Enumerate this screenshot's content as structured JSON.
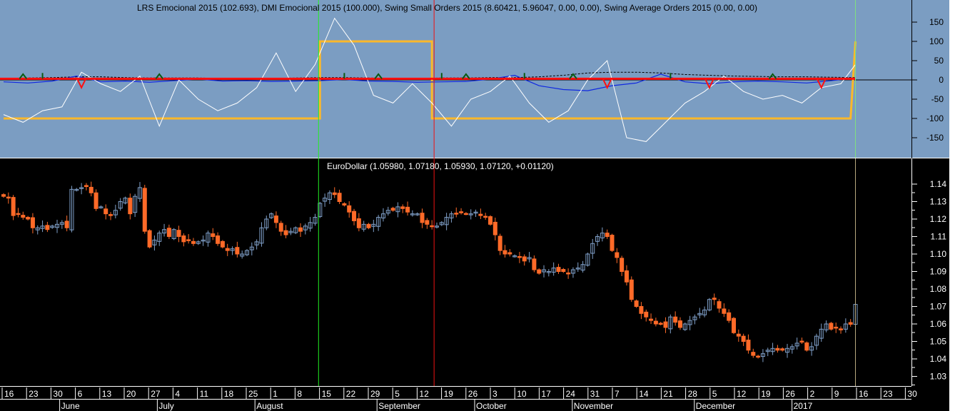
{
  "colors": {
    "indicator_bg": "#7b9dc2",
    "price_bg": "#000000",
    "up": "#7f9fc8",
    "down": "#ff6a28",
    "lrs": "#ffffff",
    "dmi": "#fbb82a",
    "blue": "#1028e0",
    "red": "#ff1010",
    "green_marker": "#0a5a10",
    "cursor_green": "#22ee22",
    "cursor_red": "#ee1111"
  },
  "chart_data": [
    {
      "type": "line",
      "title": "LRS Emocional 2015 (102.693), DMI Emocional 2015 (100.000), Swing Small Orders 2015 (8.60421, 5.96047, 0.00, 0.00), Swing Average Orders 2015 (0.00, 0.00)",
      "ylim": [
        -200,
        200
      ],
      "yticks": [
        "150",
        "100",
        "50",
        "0",
        "-50",
        "-100",
        "-150"
      ],
      "lrs_every_4_bars": [
        -90,
        -110,
        -80,
        -70,
        20,
        -10,
        -30,
        10,
        -120,
        0,
        -50,
        -80,
        -60,
        -20,
        70,
        -30,
        40,
        160,
        90,
        -40,
        -60,
        -10,
        -60,
        -120,
        -50,
        -30,
        10,
        -60,
        -110,
        -80,
        0,
        50,
        -150,
        -160,
        -110,
        -60,
        -30,
        10,
        -30,
        -50,
        -40,
        -60,
        -20,
        -10,
        40,
        102.693
      ],
      "dmi_segments": [
        {
          "from_bar": 0,
          "to_bar": 65,
          "value": -100
        },
        {
          "from_bar": 65,
          "to_bar": 88,
          "value": 100
        },
        {
          "from_bar": 88,
          "to_bar": 174,
          "value": -100
        },
        {
          "from_bar": 175,
          "to_bar": 175,
          "value": 100
        }
      ],
      "swing_small_every_8_bars": [
        -5,
        -8,
        -3,
        10,
        -5,
        -3,
        -6,
        -2,
        2,
        -3,
        -2,
        -4,
        -3,
        -2,
        1,
        -3,
        -4,
        -6,
        -5,
        -4,
        2,
        12,
        -15,
        -25,
        -28,
        -15,
        -8,
        15,
        -5,
        -10,
        -5,
        -3,
        -5,
        -8,
        -2,
        5
      ],
      "swing_avg_every_8_bars": [
        4,
        5,
        6,
        8,
        8,
        6,
        5,
        5,
        5,
        4,
        4,
        4,
        5,
        6,
        6,
        5,
        4,
        4,
        5,
        5,
        6,
        6,
        8,
        12,
        18,
        20,
        20,
        18,
        14,
        12,
        10,
        9,
        8,
        8,
        7,
        6
      ],
      "red_dips_bar": [
        16,
        124,
        145,
        168
      ],
      "green_peaks_bar": [
        4,
        8,
        32,
        70,
        77,
        90,
        95,
        107,
        117,
        137,
        158
      ]
    },
    {
      "type": "candlestick",
      "title": "EuroDollar (1.05980, 1.07180, 1.05930, 1.07120, +0.01120)",
      "ylim": [
        1.025,
        1.15
      ],
      "yticks": [
        "1.14",
        "1.13",
        "1.12",
        "1.11",
        "1.10",
        "1.09",
        "1.08",
        "1.07",
        "1.06",
        "1.05",
        "1.04",
        "1.03"
      ],
      "closes": [
        1.133,
        1.132,
        1.122,
        1.123,
        1.121,
        1.12,
        1.115,
        1.115,
        1.116,
        1.114,
        1.116,
        1.117,
        1.118,
        1.115,
        1.137,
        1.137,
        1.138,
        1.139,
        1.135,
        1.126,
        1.127,
        1.123,
        1.122,
        1.125,
        1.13,
        1.132,
        1.123,
        1.133,
        1.138,
        1.113,
        1.104,
        1.108,
        1.112,
        1.114,
        1.11,
        1.114,
        1.11,
        1.107,
        1.108,
        1.106,
        1.107,
        1.108,
        1.112,
        1.11,
        1.106,
        1.104,
        1.102,
        1.103,
        1.1,
        1.1,
        1.102,
        1.104,
        1.107,
        1.115,
        1.12,
        1.123,
        1.118,
        1.113,
        1.111,
        1.113,
        1.115,
        1.113,
        1.116,
        1.118,
        1.121,
        1.129,
        1.132,
        1.135,
        1.134,
        1.13,
        1.128,
        1.124,
        1.119,
        1.115,
        1.117,
        1.115,
        1.117,
        1.121,
        1.123,
        1.125,
        1.125,
        1.127,
        1.126,
        1.124,
        1.123,
        1.123,
        1.118,
        1.117,
        1.116,
        1.116,
        1.118,
        1.121,
        1.123,
        1.123,
        1.124,
        1.123,
        1.123,
        1.124,
        1.122,
        1.121,
        1.117,
        1.111,
        1.102,
        1.1,
        1.1,
        1.099,
        1.098,
        1.096,
        1.098,
        1.091,
        1.089,
        1.091,
        1.09,
        1.092,
        1.09,
        1.09,
        1.089,
        1.091,
        1.092,
        1.094,
        1.1,
        1.106,
        1.11,
        1.112,
        1.11,
        1.102,
        1.098,
        1.09,
        1.084,
        1.074,
        1.07,
        1.066,
        1.064,
        1.062,
        1.06,
        1.06,
        1.058,
        1.064,
        1.061,
        1.058,
        1.06,
        1.062,
        1.064,
        1.066,
        1.068,
        1.074,
        1.074,
        1.069,
        1.066,
        1.062,
        1.055,
        1.053,
        1.05,
        1.045,
        1.042,
        1.041,
        1.043,
        1.045,
        1.046,
        1.045,
        1.045,
        1.046,
        1.047,
        1.049,
        1.05,
        1.045,
        1.047,
        1.053,
        1.057,
        1.06,
        1.057,
        1.058,
        1.057,
        1.06,
        1.0598,
        1.0712
      ],
      "last_bar": {
        "open": 1.0598,
        "high": 1.0718,
        "low": 1.0593,
        "close": 1.0712
      }
    }
  ],
  "x_axis": {
    "days": [
      "16",
      "23",
      "30",
      "6",
      "13",
      "20",
      "27",
      "4",
      "11",
      "18",
      "25",
      "1",
      "8",
      "15",
      "22",
      "29",
      "5",
      "12",
      "19",
      "26",
      "3",
      "10",
      "17",
      "24",
      "31",
      "7",
      "14",
      "21",
      "28",
      "5",
      "12",
      "19",
      "26",
      "2",
      "9",
      "16",
      "23",
      "30"
    ],
    "months": [
      {
        "label": "June",
        "week": 3
      },
      {
        "label": "July",
        "week": 7
      },
      {
        "label": "August",
        "week": 11
      },
      {
        "label": "September",
        "week": 16
      },
      {
        "label": "October",
        "week": 20
      },
      {
        "label": "November",
        "week": 24
      },
      {
        "label": "December",
        "week": 29
      },
      {
        "label": "2017",
        "week": 33
      }
    ]
  },
  "cursors": {
    "green_bar": 65,
    "red_bar": 88,
    "last_bar": 175
  }
}
